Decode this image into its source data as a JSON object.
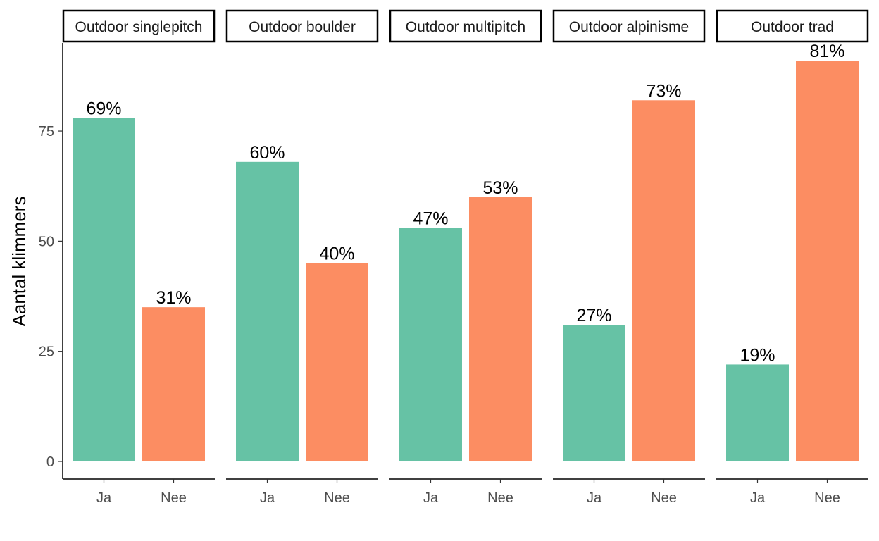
{
  "chart_data": {
    "type": "bar",
    "facet": true,
    "ylabel": "Aantal klimmers",
    "xlabel": "",
    "ylim": [
      -4,
      95
    ],
    "yticks": [
      "0",
      "25",
      "50",
      "75"
    ],
    "categories": [
      "Ja",
      "Nee"
    ],
    "colors": {
      "Ja": "#66c2a5",
      "Nee": "#fc8d62"
    },
    "grid": false,
    "legend": "none",
    "panels": [
      {
        "title": "Outdoor singlepitch",
        "values": [
          78,
          35
        ],
        "labels": [
          "69%",
          "31%"
        ]
      },
      {
        "title": "Outdoor boulder",
        "values": [
          68,
          45
        ],
        "labels": [
          "60%",
          "40%"
        ]
      },
      {
        "title": "Outdoor multipitch",
        "values": [
          53,
          60
        ],
        "labels": [
          "47%",
          "53%"
        ]
      },
      {
        "title": "Outdoor alpinisme",
        "values": [
          31,
          82
        ],
        "labels": [
          "27%",
          "73%"
        ]
      },
      {
        "title": "Outdoor trad",
        "values": [
          22,
          91
        ],
        "labels": [
          "19%",
          "81%"
        ]
      }
    ]
  }
}
